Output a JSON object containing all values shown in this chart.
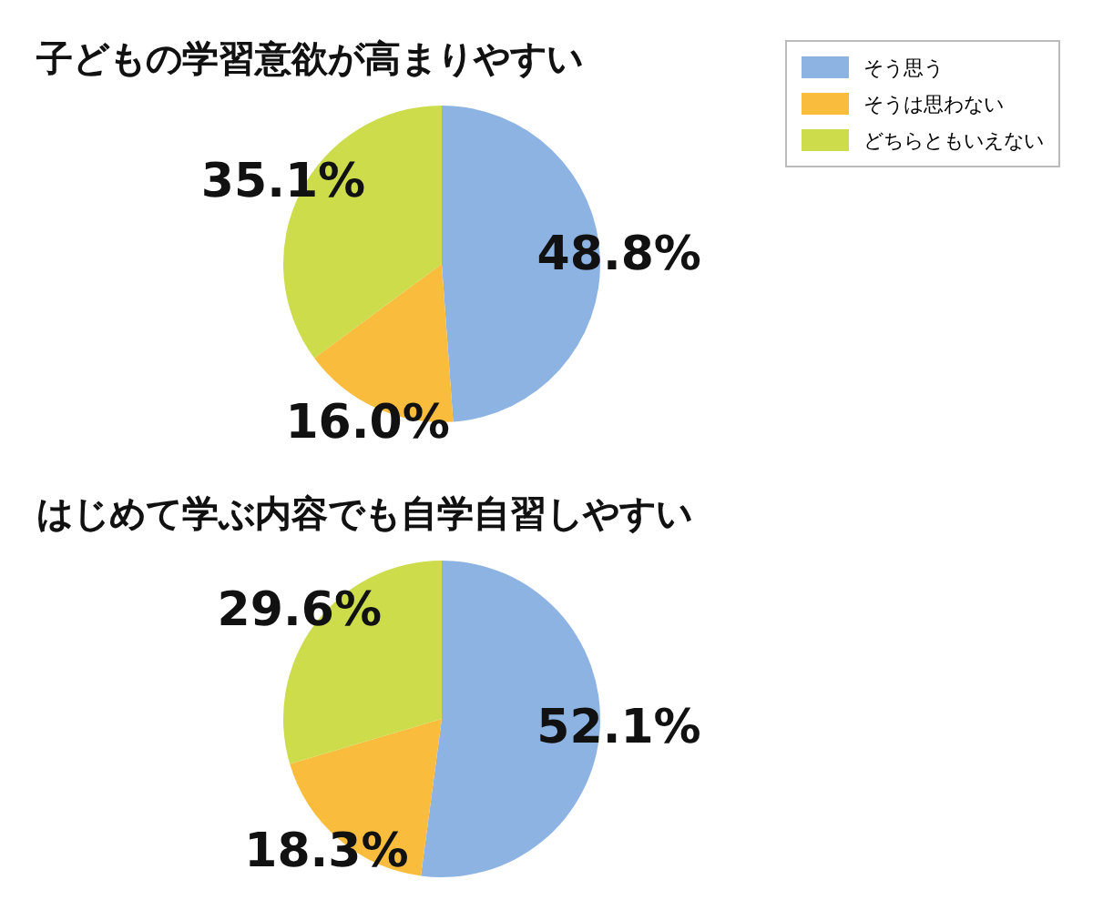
{
  "chart_data": [
    {
      "type": "pie",
      "title": "子どもの学習意欲が高まりやすい",
      "categories": [
        "そう思う",
        "そうは思わない",
        "どちらともいえない"
      ],
      "values": [
        48.8,
        16.0,
        35.1
      ],
      "colors": [
        "#8db3e2",
        "#f9bc3c",
        "#cddc4a"
      ],
      "value_labels": [
        "48.8%",
        "16.0%",
        "35.1%"
      ],
      "legend": "top right"
    },
    {
      "type": "pie",
      "title": "はじめて学ぶ内容でも自学自習しやすい",
      "categories": [
        null,
        null,
        null
      ],
      "values": [
        52.1,
        18.3,
        29.6
      ],
      "colors": [
        "#8db3e2",
        "#f9bc3c",
        "#cddc4a"
      ],
      "value_labels": [
        "52.1%",
        "18.3%",
        "29.6%"
      ]
    }
  ]
}
